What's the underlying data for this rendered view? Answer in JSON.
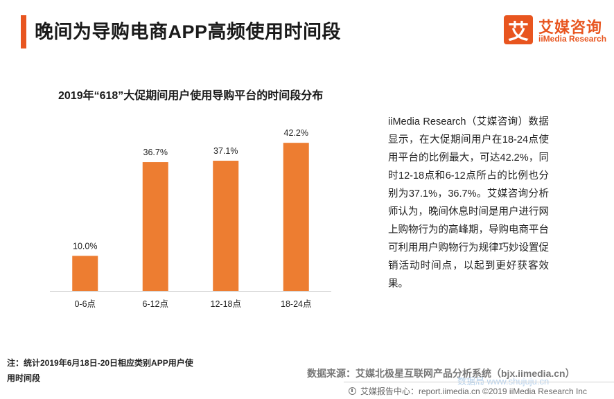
{
  "header": {
    "title": "晚间为导购电商APP高频使用时间段",
    "logo_mark": "艾",
    "logo_cn": "艾媒咨询",
    "logo_en": "iiMedia Research"
  },
  "chart_data": {
    "type": "bar",
    "title": "2019年“618”大促期间用户使用导购平台的时间段分布",
    "categories": [
      "0-6点",
      "6-12点",
      "12-18点",
      "18-24点"
    ],
    "values": [
      10.0,
      36.7,
      37.1,
      42.2
    ],
    "value_labels": [
      "10.0%",
      "36.7%",
      "37.1%",
      "42.2%"
    ],
    "ylim": [
      0,
      45
    ],
    "grid": false,
    "bar_color": "#ed7d31"
  },
  "description": "iiMedia Research（艾媒咨询）数据显示，在大促期间用户在18-24点使用平台的比例最大，可达42.2%，同时12-18点和6-12点所占的比例也分别为37.1%，36.7%。艾媒咨询分析师认为，晚间休息时间是用户进行网上购物行为的高峰期，导购电商平台可利用用户购物行为规律巧妙设置促销活动时间点，以起到更好获客效果。",
  "note": "注：统计2019年6月18日-20日相应类别APP用户使用时间段",
  "source": "数据来源：艾媒北极星互联网产品分析系统（bjx.iimedia.cn）",
  "footer": "艾媒报告中心：report.iimedia.cn  ©2019  iiMedia Research  Inc",
  "watermark": "数据局 www.shujuju.cn",
  "colors": {
    "accent": "#e8551f",
    "bar": "#ed7d31"
  }
}
